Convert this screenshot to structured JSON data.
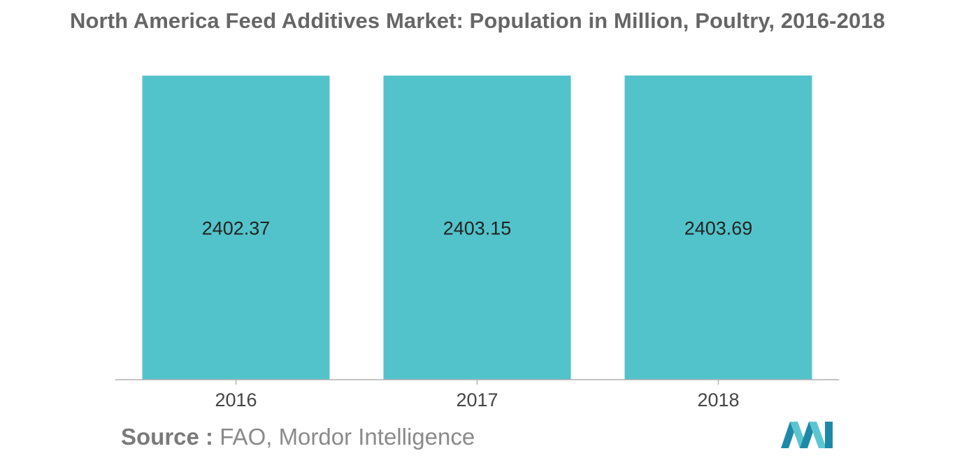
{
  "chart_data": {
    "type": "bar",
    "title": "North America Feed Additives Market: Population in Million, Poultry, 2016-2018",
    "categories": [
      "2016",
      "2017",
      "2018"
    ],
    "values": [
      2402.37,
      2403.15,
      2403.69
    ],
    "data_labels": [
      "2402.37",
      "2403.15",
      "2403.69"
    ],
    "xlabel": "",
    "ylabel": "",
    "bar_color": "#52C3CA",
    "grid": false,
    "legend": "none"
  },
  "source": {
    "label": "Source :",
    "text": "FAO, Mordor Intelligence"
  },
  "colors": {
    "bar": "#52C3CA",
    "title": "#666666",
    "label": "#222222",
    "axis": "#b0b0b0"
  },
  "logo": {
    "icon": "mordor-intelligence-logo-icon"
  }
}
